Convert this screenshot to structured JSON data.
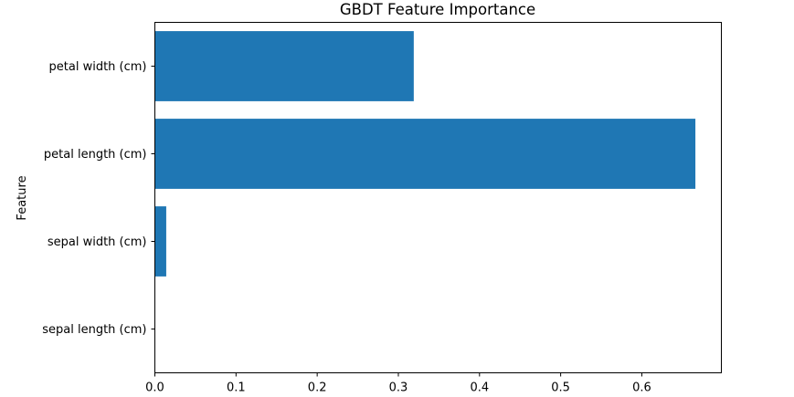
{
  "chart_data": {
    "type": "bar",
    "orientation": "horizontal",
    "title": "GBDT Feature Importance",
    "xlabel": "",
    "ylabel": "Feature",
    "categories": [
      "sepal length (cm)",
      "sepal width (cm)",
      "petal length (cm)",
      "petal width (cm)"
    ],
    "values": [
      0.0,
      0.014,
      0.666,
      0.319
    ],
    "xlim": [
      0,
      0.698
    ],
    "xticks": [
      0.0,
      0.1,
      0.2,
      0.3,
      0.4,
      0.5,
      0.6
    ],
    "xtick_labels": [
      "0.0",
      "0.1",
      "0.2",
      "0.3",
      "0.4",
      "0.5",
      "0.6"
    ],
    "bar_color": "#1f77b4",
    "grid": false,
    "legend": "none"
  }
}
